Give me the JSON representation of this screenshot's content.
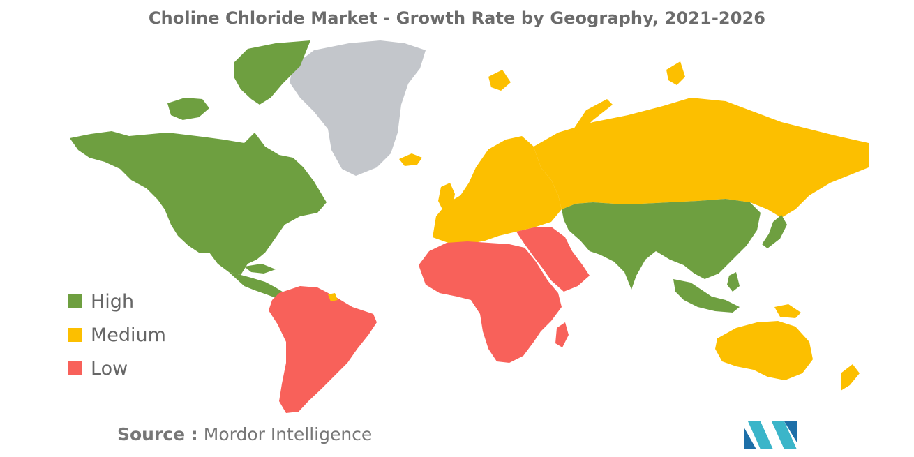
{
  "title": "Choline Chloride Market - Growth Rate by Geography, 2021-2026",
  "colors": {
    "high": "#6e9f40",
    "medium": "#fcbf00",
    "low": "#f8615a",
    "no_data": "#c3c6cb"
  },
  "legend": [
    {
      "label": "High",
      "color": "#6e9f40"
    },
    {
      "label": "Medium",
      "color": "#fcbf00"
    },
    {
      "label": "Low",
      "color": "#f8615a"
    }
  ],
  "regions": {
    "north_america": "High",
    "central_america": "High",
    "south_america": "Low",
    "greenland": "No data",
    "europe": "Medium",
    "russia": "Medium",
    "middle_east": "Low",
    "africa": "Low",
    "asia": "High",
    "southeast_asia": "High",
    "australia": "Medium",
    "new_zealand": "Medium",
    "japan": "High"
  },
  "source": {
    "label": "Source :",
    "value": "Mordor Intelligence"
  },
  "logo_name": "mordor-intelligence-logo"
}
